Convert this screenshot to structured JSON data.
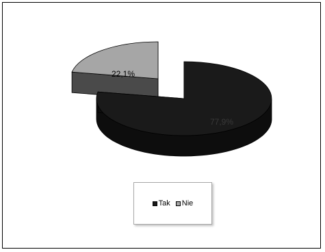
{
  "chart_data": {
    "type": "pie",
    "style": "3d-exploded",
    "categories": [
      "Tak",
      "Nie"
    ],
    "values": [
      77.9,
      22.1
    ],
    "data_labels": [
      "77,9%",
      "22,1%"
    ],
    "colors": [
      "#1a1a1a",
      "#a6a6a6"
    ],
    "side_colors": [
      "#0d0d0d",
      "#4a4a4a"
    ],
    "legend": {
      "placement": "bottom",
      "entries": [
        "Tak",
        "Nie"
      ]
    },
    "title": ""
  }
}
